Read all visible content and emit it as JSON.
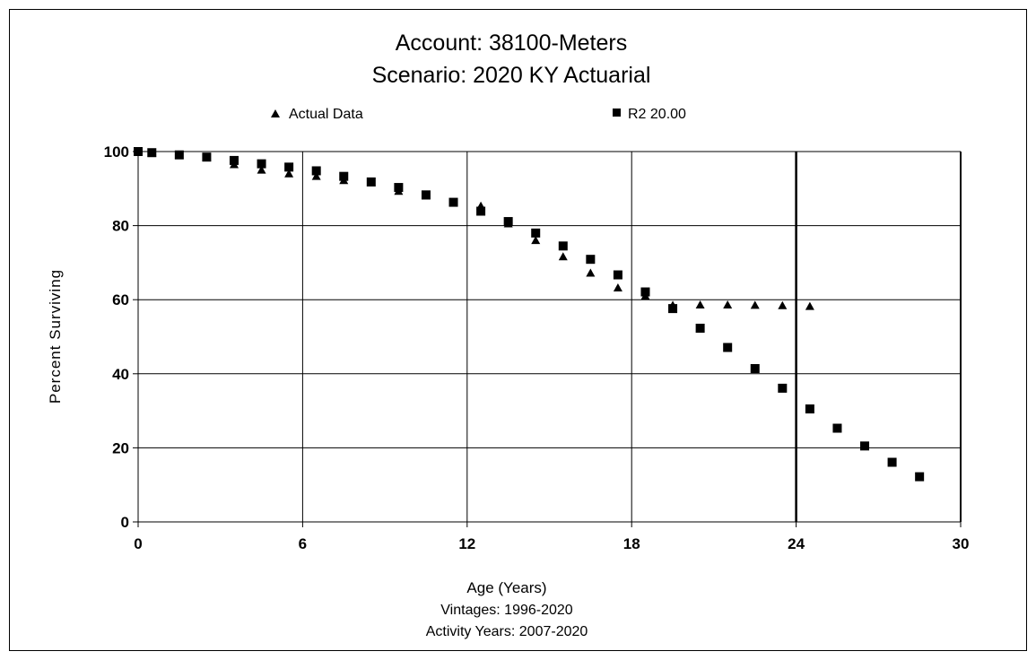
{
  "chart_data": {
    "type": "scatter",
    "title": [
      "Account: 38100-Meters",
      "Scenario: 2020 KY Actuarial"
    ],
    "xlabel": "Age (Years)",
    "xlabel_sub": [
      "Vintages: 1996-2020",
      "Activity Years: 2007-2020"
    ],
    "ylabel": "Percent Surviving",
    "xlim": [
      0,
      30
    ],
    "ylim": [
      0,
      100
    ],
    "xticks": [
      "0",
      "6",
      "12",
      "18",
      "24",
      "30"
    ],
    "yticks": [
      "0",
      "20",
      "40",
      "60",
      "80",
      "100"
    ],
    "grid": true,
    "legend_position": "top",
    "series": [
      {
        "name": "Actual Data",
        "marker": "triangle",
        "color": "#000000",
        "x": [
          0,
          0.5,
          1.5,
          2.5,
          3.5,
          4.5,
          5.5,
          6.5,
          7.5,
          8.5,
          9.5,
          10.5,
          11.5,
          12.5,
          13.5,
          14.5,
          15.5,
          16.5,
          17.5,
          18.5,
          19.5,
          20.5,
          21.5,
          22.5,
          23.5,
          24.5
        ],
        "y": [
          100,
          99.6,
          99.1,
          98.3,
          96.5,
          95,
          94,
          93.3,
          92.2,
          91.6,
          89.3,
          88,
          86.2,
          85.3,
          80.5,
          76,
          71.6,
          67.2,
          63.2,
          61,
          58.5,
          58.6,
          58.6,
          58.5,
          58.4,
          58.2
        ]
      },
      {
        "name": "R2 20.00",
        "marker": "square",
        "color": "#000000",
        "x": [
          0,
          0.5,
          1.5,
          2.5,
          3.5,
          4.5,
          5.5,
          6.5,
          7.5,
          8.5,
          9.5,
          10.5,
          11.5,
          12.5,
          13.5,
          14.5,
          15.5,
          16.5,
          17.5,
          18.5,
          19.5,
          20.5,
          21.5,
          22.5,
          23.5,
          24.5,
          25.5,
          26.5,
          27.5,
          28.5
        ],
        "y": [
          100,
          99.7,
          99.1,
          98.5,
          97.6,
          96.7,
          95.8,
          94.8,
          93.3,
          91.8,
          90.3,
          88.3,
          86.3,
          83.9,
          81.1,
          78,
          74.5,
          70.9,
          66.7,
          62.1,
          57.6,
          52.3,
          47.1,
          41.4,
          36.1,
          30.5,
          25.3,
          20.5,
          16.1,
          12.2
        ]
      }
    ]
  }
}
